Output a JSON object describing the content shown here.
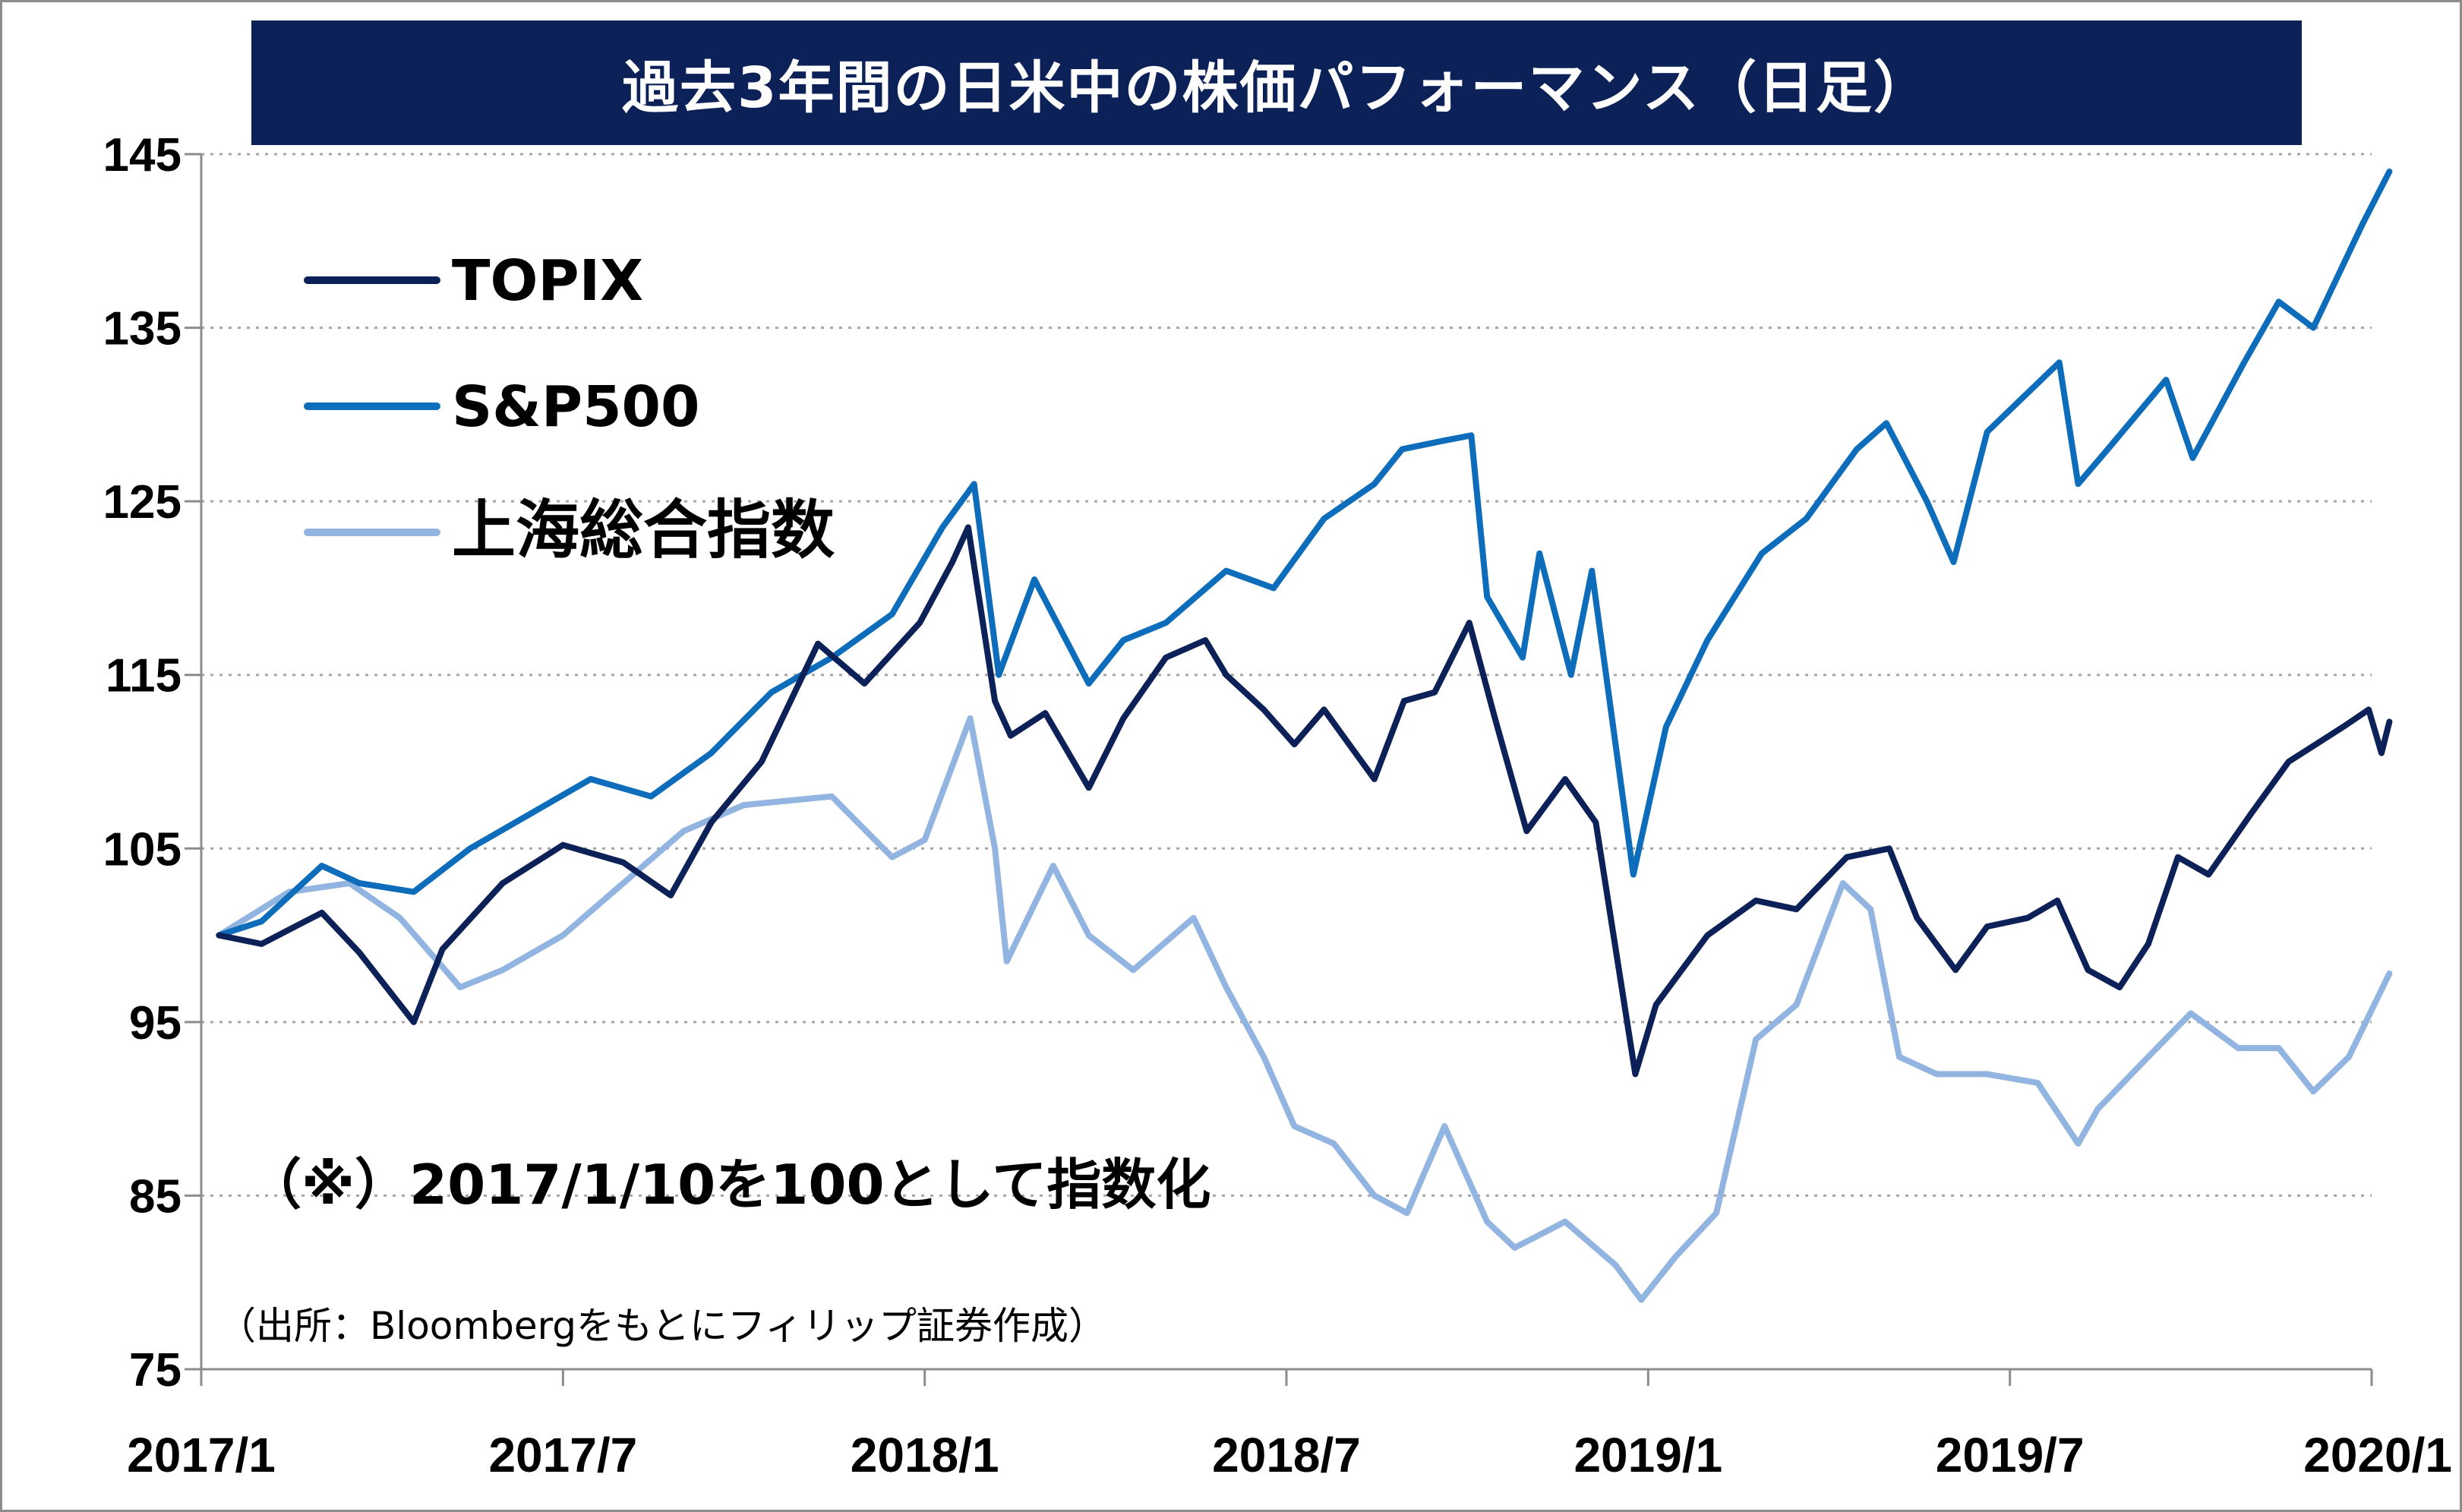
{
  "chart_data": {
    "type": "line",
    "title": "過去3年間の日米中の株価パフォーマンス（日足）",
    "xlabel": "",
    "ylabel": "",
    "ylim": [
      75,
      145
    ],
    "yticks": [
      75,
      85,
      95,
      105,
      115,
      125,
      135,
      145
    ],
    "xlim": [
      "2017-01",
      "2020-01"
    ],
    "xtick_labels": [
      "2017/1",
      "2017/7",
      "2018/1",
      "2018/7",
      "2019/1",
      "2019/7",
      "2020/1"
    ],
    "grid": "horizontal-dotted",
    "legend_position": "top-left",
    "annotation": "（※）2017/1/10を100として指数化",
    "source_note": "（出所：Bloombergをもとにフィリップ証券作成）",
    "series": [
      {
        "name": "TOPIX",
        "color": "#0d2159",
        "x": [
          "2017-01-10",
          "2017-02-01",
          "2017-03-01",
          "2017-03-20",
          "2017-04-17",
          "2017-05-01",
          "2017-06-01",
          "2017-07-01",
          "2017-08-01",
          "2017-08-25",
          "2017-09-15",
          "2017-10-10",
          "2017-11-08",
          "2017-12-01",
          "2017-12-29",
          "2018-01-15",
          "2018-01-23",
          "2018-02-06",
          "2018-02-14",
          "2018-03-01",
          "2018-03-23",
          "2018-04-10",
          "2018-05-01",
          "2018-05-21",
          "2018-06-01",
          "2018-06-20",
          "2018-07-05",
          "2018-07-20",
          "2018-08-15",
          "2018-08-30",
          "2018-09-15",
          "2018-10-02",
          "2018-10-15",
          "2018-10-31",
          "2018-11-20",
          "2018-12-05",
          "2018-12-25",
          "2019-01-05",
          "2019-01-31",
          "2019-02-25",
          "2019-03-15",
          "2019-04-10",
          "2019-05-01",
          "2019-05-15",
          "2019-06-04",
          "2019-06-20",
          "2019-07-10",
          "2019-07-25",
          "2019-08-10",
          "2019-08-26",
          "2019-09-10",
          "2019-09-25",
          "2019-10-10",
          "2019-11-01",
          "2019-11-20",
          "2019-12-17",
          "2019-12-30",
          "2020-01-06",
          "2020-01-10"
        ],
        "values": [
          100.0,
          99.5,
          101.3,
          99.0,
          95.0,
          99.2,
          103.0,
          105.2,
          104.2,
          102.3,
          106.5,
          110.0,
          116.8,
          114.5,
          118.0,
          121.5,
          123.5,
          113.5,
          111.5,
          112.8,
          108.5,
          112.5,
          116.0,
          117.0,
          115.0,
          113.0,
          111.0,
          113.0,
          109.0,
          113.5,
          114.0,
          118.0,
          112.5,
          106.0,
          109.0,
          106.5,
          92.0,
          96.0,
          100.0,
          102.0,
          101.5,
          104.5,
          105.0,
          101.0,
          98.0,
          100.5,
          101.0,
          102.0,
          98.0,
          97.0,
          99.5,
          104.5,
          103.5,
          107.0,
          110.0,
          112.0,
          113.0,
          110.5,
          112.3
        ]
      },
      {
        "name": "S&P500",
        "color": "#0e6dba",
        "x": [
          "2017-01-10",
          "2017-02-01",
          "2017-03-01",
          "2017-03-20",
          "2017-04-17",
          "2017-05-15",
          "2017-06-15",
          "2017-07-15",
          "2017-08-15",
          "2017-09-15",
          "2017-10-15",
          "2017-11-15",
          "2017-12-15",
          "2018-01-10",
          "2018-01-26",
          "2018-02-08",
          "2018-02-26",
          "2018-03-23",
          "2018-04-10",
          "2018-05-01",
          "2018-06-01",
          "2018-06-25",
          "2018-07-20",
          "2018-08-15",
          "2018-08-29",
          "2018-09-20",
          "2018-10-03",
          "2018-10-11",
          "2018-10-29",
          "2018-11-07",
          "2018-11-23",
          "2018-12-03",
          "2018-12-24",
          "2019-01-10",
          "2019-01-31",
          "2019-02-28",
          "2019-03-20",
          "2019-04-15",
          "2019-04-30",
          "2019-05-20",
          "2019-06-03",
          "2019-06-20",
          "2019-07-26",
          "2019-08-05",
          "2019-08-20",
          "2019-09-19",
          "2019-10-02",
          "2019-10-28",
          "2019-11-15",
          "2019-12-02",
          "2019-12-27",
          "2020-01-10"
        ],
        "values": [
          100.0,
          100.8,
          104.0,
          103.0,
          102.5,
          105.0,
          107.0,
          109.0,
          108.0,
          110.5,
          114.0,
          116.0,
          118.5,
          123.5,
          126.0,
          115.0,
          120.5,
          114.5,
          117.0,
          118.0,
          121.0,
          120.0,
          124.0,
          126.0,
          128.0,
          128.5,
          128.8,
          119.5,
          116.0,
          122.0,
          115.0,
          121.0,
          103.5,
          112.0,
          117.0,
          122.0,
          124.0,
          128.0,
          129.5,
          125.0,
          121.5,
          129.0,
          133.0,
          126.0,
          128.0,
          132.0,
          127.5,
          133.0,
          136.5,
          135.0,
          141.0,
          144.0
        ]
      },
      {
        "name": "上海総合指数",
        "color": "#92b4e0",
        "x": [
          "2017-01-10",
          "2017-02-15",
          "2017-03-15",
          "2017-04-10",
          "2017-05-10",
          "2017-06-01",
          "2017-07-01",
          "2017-08-01",
          "2017-09-01",
          "2017-10-01",
          "2017-11-15",
          "2017-12-15",
          "2018-01-01",
          "2018-01-24",
          "2018-02-06",
          "2018-02-12",
          "2018-03-05",
          "2018-03-23",
          "2018-04-15",
          "2018-05-15",
          "2018-06-01",
          "2018-06-20",
          "2018-07-05",
          "2018-07-25",
          "2018-08-15",
          "2018-09-01",
          "2018-09-20",
          "2018-10-11",
          "2018-10-25",
          "2018-11-20",
          "2018-12-15",
          "2018-12-28",
          "2019-01-15",
          "2019-02-05",
          "2019-02-25",
          "2019-03-15",
          "2019-04-08",
          "2019-04-22",
          "2019-05-06",
          "2019-05-25",
          "2019-06-20",
          "2019-07-15",
          "2019-08-05",
          "2019-08-15",
          "2019-09-10",
          "2019-10-01",
          "2019-10-25",
          "2019-11-15",
          "2019-12-02",
          "2019-12-20",
          "2020-01-10"
        ],
        "values": [
          100.0,
          102.5,
          103.0,
          101.0,
          97.0,
          98.0,
          100.0,
          103.0,
          106.0,
          107.5,
          108.0,
          104.5,
          105.5,
          112.5,
          105.0,
          98.5,
          104.0,
          100.0,
          98.0,
          101.0,
          97.0,
          93.0,
          89.0,
          88.0,
          85.0,
          84.0,
          89.0,
          83.5,
          82.0,
          83.5,
          81.0,
          79.0,
          81.5,
          84.0,
          94.0,
          96.0,
          103.0,
          101.5,
          93.0,
          92.0,
          92.0,
          91.5,
          88.0,
          90.0,
          93.0,
          95.5,
          93.5,
          93.5,
          91.0,
          93.0,
          97.8
        ]
      }
    ]
  }
}
